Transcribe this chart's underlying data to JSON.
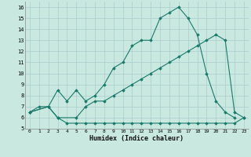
{
  "xlabel": "Humidex (Indice chaleur)",
  "background_color": "#c8e8e0",
  "grid_color": "#aacccc",
  "line_color": "#1a7a6a",
  "xlim": [
    -0.5,
    23.5
  ],
  "ylim": [
    5,
    16.5
  ],
  "xticks": [
    0,
    1,
    2,
    3,
    4,
    5,
    6,
    7,
    8,
    9,
    10,
    11,
    12,
    13,
    14,
    15,
    16,
    17,
    18,
    19,
    20,
    21,
    22,
    23
  ],
  "yticks": [
    5,
    6,
    7,
    8,
    9,
    10,
    11,
    12,
    13,
    14,
    15,
    16
  ],
  "line1_x": [
    0,
    1,
    2,
    3,
    4,
    5,
    6,
    7,
    8,
    9,
    10,
    11,
    12,
    13,
    14,
    15,
    16,
    17,
    18,
    19,
    20,
    21,
    22
  ],
  "line1_y": [
    6.5,
    7.0,
    7.0,
    8.5,
    7.5,
    8.5,
    7.5,
    8.0,
    9.0,
    10.5,
    11.0,
    12.5,
    13.0,
    13.0,
    15.0,
    15.5,
    16.0,
    15.0,
    13.5,
    10.0,
    7.5,
    6.5,
    6.0
  ],
  "line2_x": [
    0,
    2,
    3,
    5,
    6,
    7,
    8,
    9,
    10,
    11,
    12,
    13,
    14,
    15,
    16,
    17,
    18,
    19,
    20,
    21,
    22,
    23
  ],
  "line2_y": [
    6.5,
    7.0,
    6.0,
    6.0,
    7.0,
    7.5,
    7.5,
    8.0,
    8.5,
    9.0,
    9.5,
    10.0,
    10.5,
    11.0,
    11.5,
    12.0,
    12.5,
    13.0,
    13.5,
    13.0,
    6.5,
    6.0
  ],
  "line3_x": [
    0,
    2,
    3,
    4,
    5,
    6,
    7,
    8,
    9,
    10,
    11,
    12,
    13,
    14,
    15,
    16,
    17,
    18,
    19,
    20,
    21,
    22,
    23
  ],
  "line3_y": [
    6.5,
    7.0,
    6.0,
    5.5,
    5.5,
    5.5,
    5.5,
    5.5,
    5.5,
    5.5,
    5.5,
    5.5,
    5.5,
    5.5,
    5.5,
    5.5,
    5.5,
    5.5,
    5.5,
    5.5,
    5.5,
    5.5,
    6.0
  ]
}
